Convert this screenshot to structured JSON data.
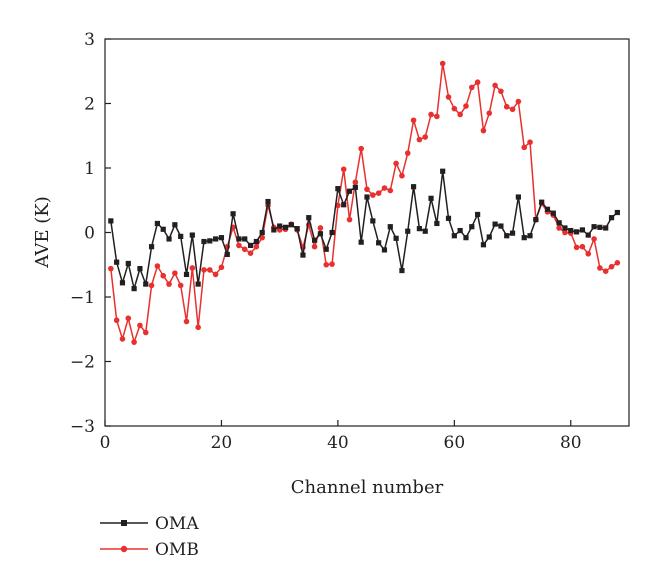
{
  "chart_data": {
    "type": "line",
    "title": "",
    "xlabel": "Channel number",
    "ylabel": "AVE (K)",
    "xlim": [
      0,
      90
    ],
    "ylim": [
      -3,
      3
    ],
    "xticks": [
      0,
      20,
      40,
      60,
      80
    ],
    "yticks": [
      -3,
      -2,
      -1,
      0,
      1,
      2,
      3
    ],
    "xtick_labels": [
      "0",
      "20",
      "40",
      "60",
      "80"
    ],
    "ytick_labels": [
      "−3",
      "−2",
      "−1",
      "0",
      "1",
      "2",
      "3"
    ],
    "grid": false,
    "legend_position": "bottom-left",
    "series": [
      {
        "name": "OMA",
        "color": "#231f20",
        "marker": "square",
        "x": [
          1,
          2,
          3,
          4,
          5,
          6,
          7,
          8,
          9,
          10,
          11,
          12,
          13,
          14,
          15,
          16,
          17,
          18,
          19,
          20,
          21,
          22,
          23,
          24,
          25,
          26,
          27,
          28,
          29,
          30,
          31,
          32,
          33,
          34,
          35,
          36,
          37,
          38,
          39,
          40,
          41,
          42,
          43,
          44,
          45,
          46,
          47,
          48,
          49,
          50,
          51,
          52,
          53,
          54,
          55,
          56,
          57,
          58,
          59,
          60,
          61,
          62,
          63,
          64,
          65,
          66,
          67,
          68,
          69,
          70,
          71,
          72,
          73,
          74,
          75,
          76,
          77,
          78,
          79,
          80,
          81,
          82,
          83,
          84,
          85,
          86,
          87,
          88
        ],
        "values": [
          0.18,
          -0.46,
          -0.78,
          -0.48,
          -0.87,
          -0.56,
          -0.8,
          -0.22,
          0.14,
          0.05,
          -0.1,
          0.12,
          -0.06,
          -0.65,
          -0.04,
          -0.8,
          -0.14,
          -0.13,
          -0.1,
          -0.08,
          -0.34,
          0.29,
          -0.1,
          -0.1,
          -0.2,
          -0.14,
          0.0,
          0.48,
          0.04,
          0.1,
          0.08,
          0.12,
          0.06,
          -0.35,
          0.23,
          -0.12,
          -0.02,
          -0.26,
          0.0,
          0.68,
          0.43,
          0.64,
          0.7,
          -0.15,
          0.55,
          0.18,
          -0.16,
          -0.27,
          0.09,
          -0.09,
          -0.59,
          0.02,
          0.71,
          0.06,
          0.02,
          0.53,
          0.14,
          0.95,
          0.22,
          -0.05,
          0.03,
          -0.08,
          0.09,
          0.28,
          -0.19,
          -0.07,
          0.13,
          0.1,
          -0.05,
          -0.01,
          0.55,
          -0.08,
          -0.05,
          0.2,
          0.47,
          0.36,
          0.3,
          0.15,
          0.07,
          0.03,
          0.01,
          0.04,
          -0.04,
          0.09,
          0.08,
          0.07,
          0.23,
          0.31
        ]
      },
      {
        "name": "OMB",
        "color": "#e8312f",
        "marker": "circle",
        "x": [
          1,
          2,
          3,
          4,
          5,
          6,
          7,
          8,
          9,
          10,
          11,
          12,
          13,
          14,
          15,
          16,
          17,
          18,
          19,
          20,
          21,
          22,
          23,
          24,
          25,
          26,
          27,
          28,
          29,
          30,
          31,
          32,
          33,
          34,
          35,
          36,
          37,
          38,
          39,
          40,
          41,
          42,
          43,
          44,
          45,
          46,
          47,
          48,
          49,
          50,
          51,
          52,
          53,
          54,
          55,
          56,
          57,
          58,
          59,
          60,
          61,
          62,
          63,
          64,
          65,
          66,
          67,
          68,
          69,
          70,
          71,
          72,
          73,
          74,
          75,
          76,
          77,
          78,
          79,
          80,
          81,
          82,
          83,
          84,
          85,
          86,
          87,
          88
        ],
        "values": [
          -0.56,
          -1.36,
          -1.65,
          -1.33,
          -1.7,
          -1.44,
          -1.55,
          -0.82,
          -0.52,
          -0.67,
          -0.8,
          -0.63,
          -0.82,
          -1.38,
          -0.55,
          -1.47,
          -0.58,
          -0.58,
          -0.65,
          -0.54,
          -0.22,
          0.08,
          -0.2,
          -0.26,
          -0.32,
          -0.22,
          -0.08,
          0.42,
          0.08,
          0.04,
          0.05,
          0.13,
          0.04,
          -0.23,
          0.12,
          -0.22,
          0.07,
          -0.5,
          -0.49,
          0.42,
          0.98,
          0.2,
          0.78,
          1.3,
          0.67,
          0.58,
          0.61,
          0.69,
          0.65,
          1.07,
          0.88,
          1.23,
          1.74,
          1.44,
          1.48,
          1.83,
          1.8,
          2.62,
          2.1,
          1.92,
          1.83,
          1.96,
          2.25,
          2.33,
          1.58,
          1.85,
          2.28,
          2.19,
          1.95,
          1.91,
          2.03,
          1.32,
          1.4,
          0.2,
          0.45,
          0.32,
          0.27,
          0.07,
          0.0,
          -0.01,
          -0.23,
          -0.22,
          -0.33,
          -0.1,
          -0.55,
          -0.6,
          -0.53,
          -0.47
        ]
      }
    ]
  }
}
